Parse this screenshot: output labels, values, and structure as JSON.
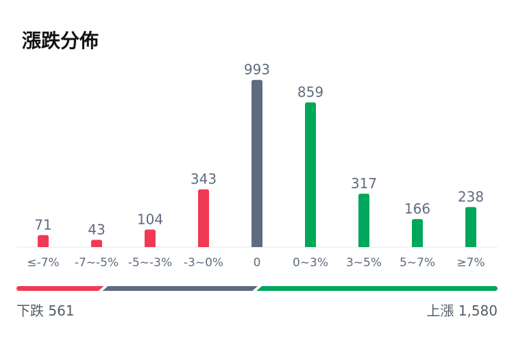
{
  "title": "漲跌分佈",
  "colors": {
    "down": "#f03a55",
    "flat": "#5f6b80",
    "up": "#00a65a",
    "label": "#5f6b80",
    "axis": "#e6e6e6"
  },
  "chart_data": {
    "type": "bar",
    "categories": [
      "≤-7%",
      "-7~-5%",
      "-5~-3%",
      "-3~0%",
      "0",
      "0~3%",
      "3~5%",
      "5~7%",
      "≥7%"
    ],
    "values": [
      71,
      43,
      104,
      343,
      993,
      859,
      317,
      166,
      238
    ],
    "bar_groups": [
      "down",
      "down",
      "down",
      "down",
      "flat",
      "up",
      "up",
      "up",
      "up"
    ],
    "ylim": [
      0,
      1000
    ],
    "grid": false
  },
  "summary": {
    "down_label": "下跌",
    "down_value": "561",
    "up_label": "上漲",
    "up_value": "1,580",
    "flat_count": 993
  }
}
